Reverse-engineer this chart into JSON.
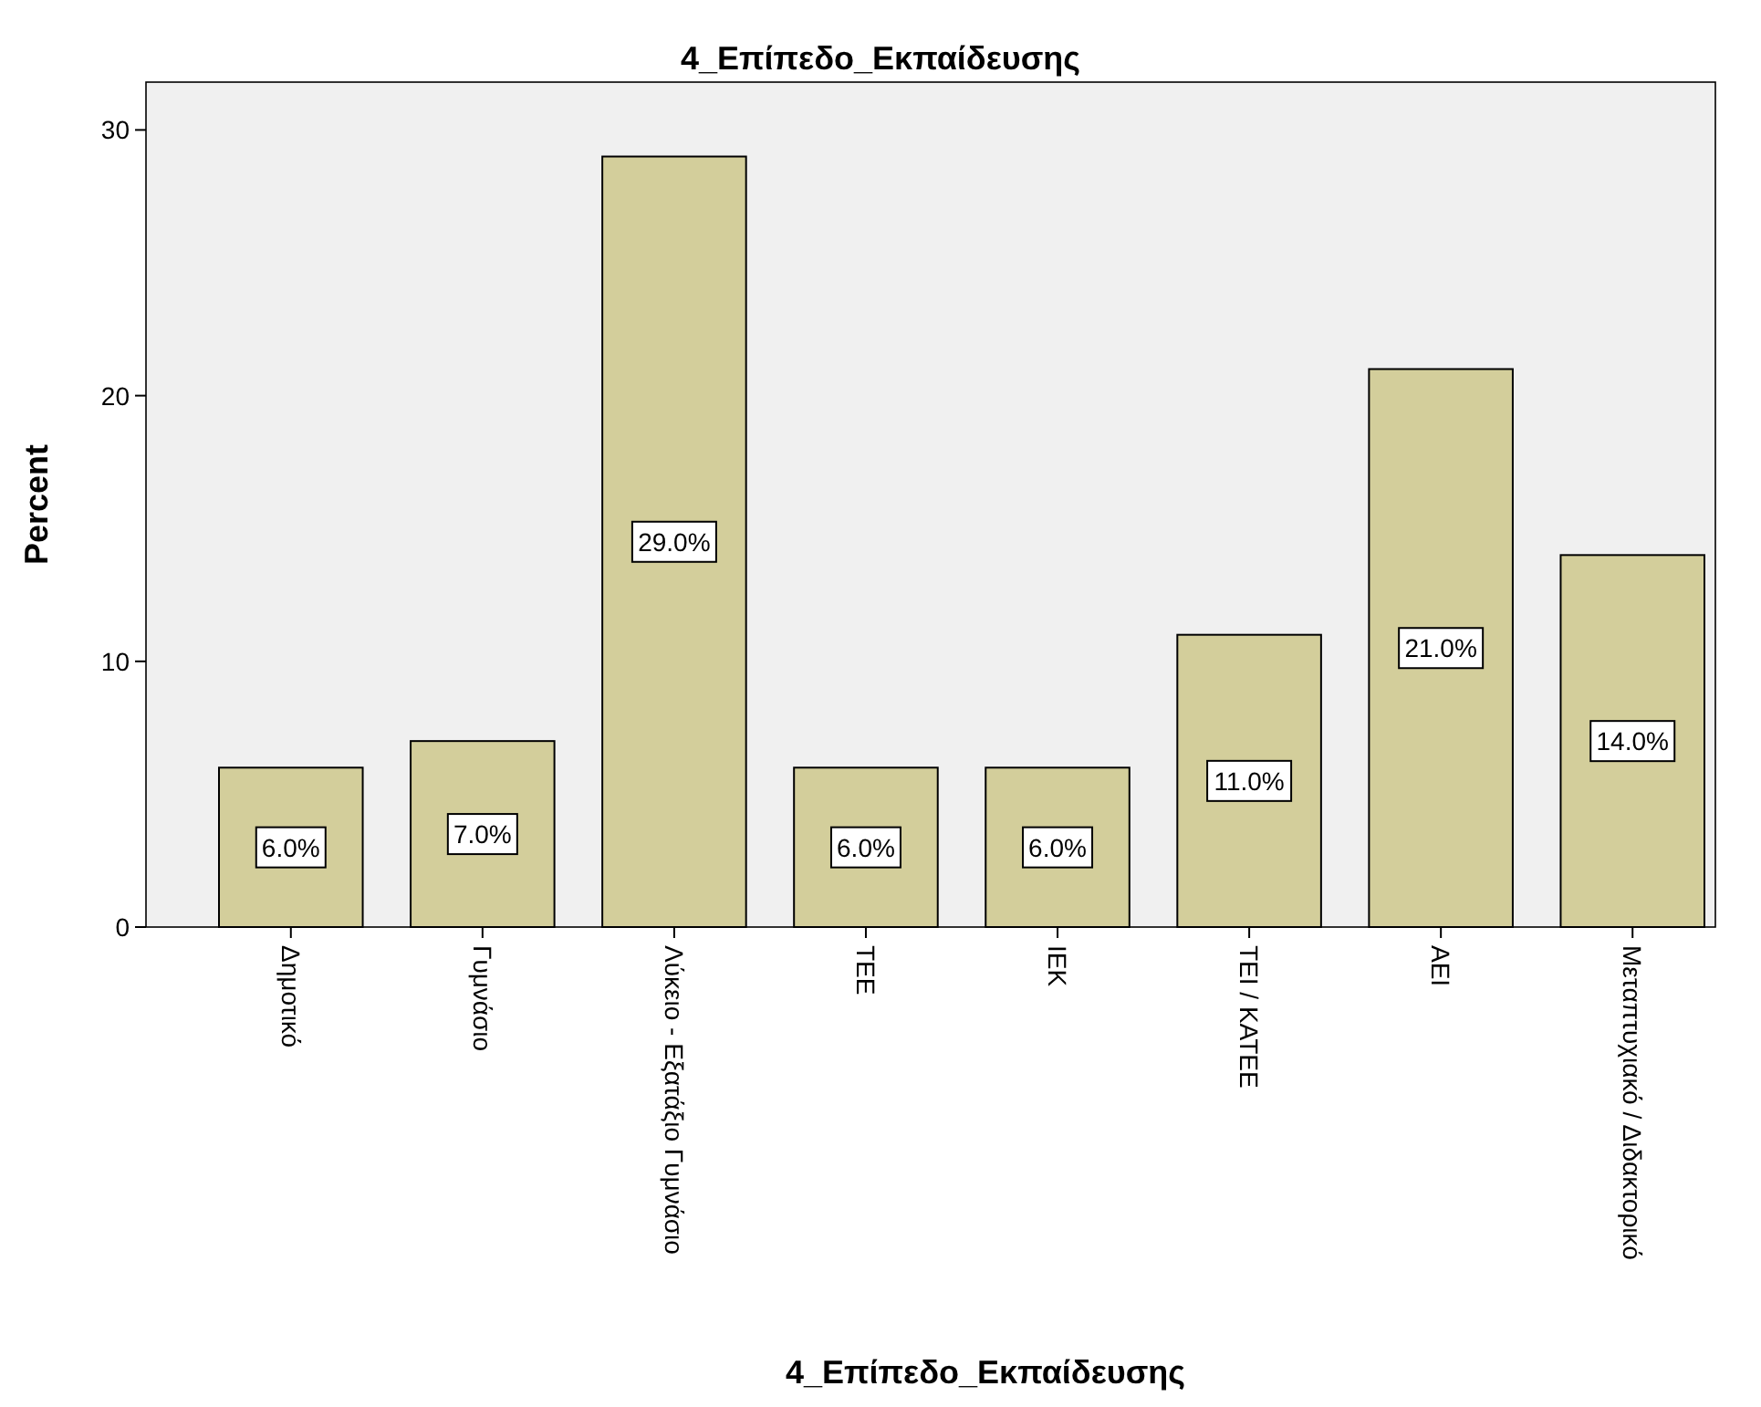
{
  "chart_data": {
    "type": "bar",
    "title": "4_Επίπεδο_Εκπαίδευσης",
    "xlabel": "4_Επίπεδο_Εκπαίδευσης",
    "ylabel": "Percent",
    "categories": [
      "Δημοτικό",
      "Γυμνάσιο",
      "Λύκειο - Εξατάξιο Γυμνάσιο",
      "ΤΕΕ",
      "ΙΕΚ",
      "ΤΕΙ / ΚΑΤΕΕ",
      "ΑΕΙ",
      "Μεταπτυχιακό / Διδακτορικό"
    ],
    "values": [
      6,
      7,
      29,
      6,
      6,
      11,
      21,
      14
    ],
    "value_labels": [
      "6.0%",
      "7.0%",
      "29.0%",
      "6.0%",
      "6.0%",
      "11.0%",
      "21.0%",
      "14.0%"
    ],
    "color": "#d3ce9b",
    "ylim": [
      0,
      31.8
    ],
    "yticks": [
      0,
      10,
      20,
      30
    ],
    "grid": false
  }
}
